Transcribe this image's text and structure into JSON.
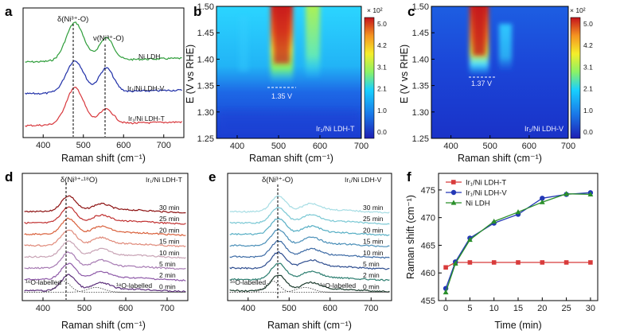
{
  "colors": {
    "green": "#2e9d3a",
    "blue": "#2030a8",
    "red": "#d8383d",
    "f_red": "#d83b3b",
    "f_blue": "#2438b6",
    "f_green": "#2a8f2a"
  },
  "chart_data": [
    {
      "panel": "a",
      "type": "line",
      "xlabel": "Raman shift (cm⁻¹)",
      "xlim": [
        350,
        750
      ],
      "xticks": [
        400,
        500,
        600,
        700
      ],
      "annotations": {
        "peak1": "δ(Ni³⁺-O)",
        "peak2": "ν(Ni³⁺-O)"
      },
      "series": [
        {
          "name": "Ni LDH",
          "color": "green"
        },
        {
          "name": "Ir₁/Ni LDH-V",
          "color": "blue"
        },
        {
          "name": "Ir₁/Ni LDH-T",
          "color": "red"
        }
      ],
      "peaks": [
        479,
        557
      ]
    },
    {
      "panel": "b",
      "type": "heatmap",
      "xlabel": "Raman shift (cm⁻¹)",
      "ylabel": "E (V vs RHE)",
      "xlim": [
        350,
        700
      ],
      "ylim": [
        1.25,
        1.5
      ],
      "xticks": [
        400,
        500,
        600,
        700
      ],
      "yticks": [
        1.25,
        1.3,
        1.35,
        1.4,
        1.45,
        1.5
      ],
      "colorbar": {
        "multiplier": "× 10²",
        "ticks": [
          "5.0",
          "4.2",
          "3.1",
          "2.1",
          "1.0",
          "0.0"
        ]
      },
      "onset_label": "1.35 V",
      "sample": "Ir₁/Ni LDH-T"
    },
    {
      "panel": "c",
      "type": "heatmap",
      "xlabel": "Raman shift (cm⁻¹)",
      "ylabel": "E (V vs RHE)",
      "xlim": [
        350,
        700
      ],
      "ylim": [
        1.25,
        1.5
      ],
      "xticks": [
        400,
        500,
        600,
        700
      ],
      "yticks": [
        1.25,
        1.3,
        1.35,
        1.4,
        1.45,
        1.5
      ],
      "colorbar": {
        "multiplier": "× 10²",
        "ticks": [
          "5.0",
          "4.2",
          "3.1",
          "2.1",
          "1.0",
          "0.0"
        ]
      },
      "onset_label": "1.37 V",
      "sample": "Ir₁/Ni LDH-V"
    },
    {
      "panel": "d",
      "type": "line",
      "xlabel": "Raman shift (cm⁻¹)",
      "xlim": [
        350,
        750
      ],
      "xticks": [
        400,
        500,
        600,
        700
      ],
      "sample": "Ir₁/Ni LDH-T",
      "annotation": "δ(Ni³⁺-¹⁸O)",
      "label_16": "¹⁶O-labelled",
      "label_18": "¹⁸O-labelled",
      "times": [
        "30 min",
        "25 min",
        "20 min",
        "15 min",
        "10 min",
        "5 min",
        "2 min",
        "0 min"
      ],
      "colors": [
        "#8c1010",
        "#c03030",
        "#d9603b",
        "#e08a7a",
        "#c8a3b5",
        "#a77bb3",
        "#8e5aa8",
        "#5b2e7a"
      ]
    },
    {
      "panel": "e",
      "type": "line",
      "xlabel": "Raman shift (cm⁻¹)",
      "xlim": [
        350,
        750
      ],
      "xticks": [
        400,
        500,
        600,
        700
      ],
      "sample": "Ir₁/Ni LDH-V",
      "annotation": "δ(Ni³⁺-O)",
      "label_16": "¹⁶O-labelled",
      "label_18": "¹⁸O-labelled",
      "times": [
        "30 min",
        "25 min",
        "20 min",
        "15 min",
        "10 min",
        "5 min",
        "2 min",
        "0 min"
      ],
      "colors": [
        "#a6dde4",
        "#7ac8d4",
        "#56aec4",
        "#4a8fb8",
        "#3d6ba5",
        "#2e4d8f",
        "#2b7d6f",
        "#1d3c2e"
      ]
    },
    {
      "panel": "f",
      "type": "line",
      "xlabel": "Time (min)",
      "ylabel": "Raman shift (cm⁻¹)",
      "xlim": [
        -1.5,
        31.5
      ],
      "ylim": [
        455,
        478
      ],
      "xticks": [
        0,
        5,
        10,
        15,
        20,
        25,
        30
      ],
      "yticks": [
        455,
        460,
        465,
        470,
        475
      ],
      "x": [
        0,
        2,
        5,
        10,
        15,
        20,
        25,
        30
      ],
      "series": [
        {
          "name": "Ir₁/Ni LDH-T",
          "marker": "square",
          "color": "f_red",
          "values": [
            461.0,
            461.9,
            461.9,
            461.9,
            461.9,
            461.9,
            461.9,
            461.9
          ]
        },
        {
          "name": "Ir₁/Ni LDH-V",
          "marker": "circle",
          "color": "f_blue",
          "values": [
            457.2,
            462.0,
            466.3,
            469.0,
            470.6,
            473.5,
            474.2,
            474.5
          ]
        },
        {
          "name": "Ni LDH",
          "marker": "triangle",
          "color": "f_green",
          "values": [
            456.5,
            461.7,
            466.0,
            469.3,
            471.0,
            472.8,
            474.3,
            474.2
          ]
        }
      ],
      "legend": "top-left"
    }
  ]
}
